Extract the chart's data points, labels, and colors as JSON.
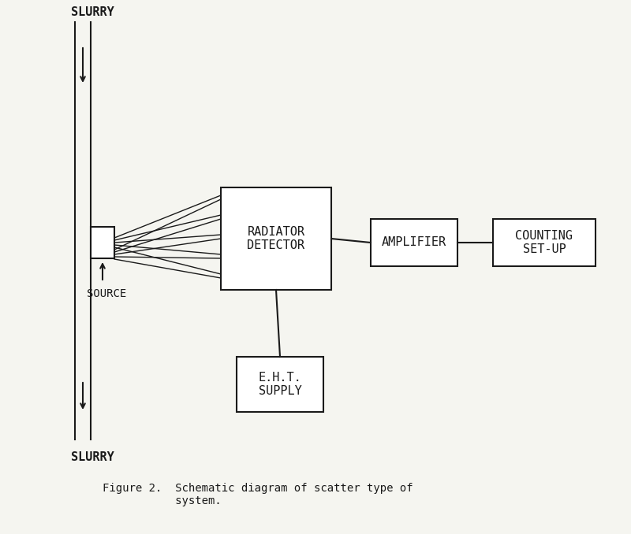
{
  "bg_color": "#f5f5f0",
  "line_color": "#1a1a1a",
  "title_text": "Figure 2.  Schematic diagram of scatter type of\n           system.",
  "slurry_top_label": "SLURRY",
  "slurry_bottom_label": "SLURRY",
  "source_label": "SOURCE",
  "radiator_label": "RADIATOR\nDETECTOR",
  "amplifier_label": "AMPLIFIER",
  "counting_label": "COUNTING\nSET-UP",
  "eht_label": "E.H.T.\nSUPPLY",
  "font_size": 11,
  "small_font": 10
}
